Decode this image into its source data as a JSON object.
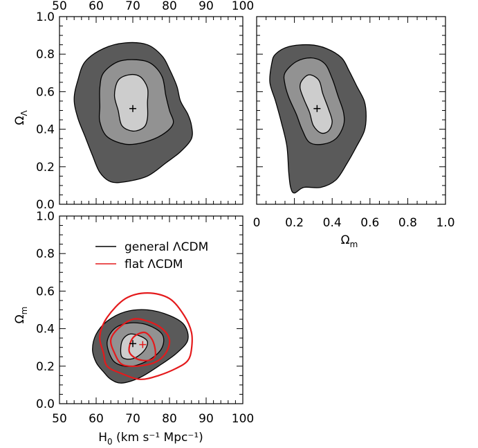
{
  "chart_data": [
    {
      "panel": "top-left",
      "type": "contour",
      "x_axis": {
        "label": "",
        "range": [
          50,
          100
        ],
        "ticks": [
          "50",
          "60",
          "70",
          "80",
          "90",
          "100"
        ],
        "tick_labels_position": "top"
      },
      "y_axis": {
        "label_main": "Ω",
        "label_sub": "Λ",
        "range": [
          0,
          1
        ],
        "ticks": [
          "0.0",
          "0.2",
          "0.4",
          "0.6",
          "0.8",
          "1.0"
        ]
      },
      "best_fit": {
        "H0": 70,
        "OmegaL": 0.51
      },
      "contours": [
        {
          "level": "outer",
          "fill": "#5a5a5a",
          "points": [
            [
              57,
              0.76
            ],
            [
              62,
              0.83
            ],
            [
              68,
              0.86
            ],
            [
              74,
              0.85
            ],
            [
              78,
              0.79
            ],
            [
              80,
              0.72
            ],
            [
              82,
              0.63
            ],
            [
              83,
              0.55
            ],
            [
              85,
              0.48
            ],
            [
              86,
              0.42
            ],
            [
              86,
              0.35
            ],
            [
              83,
              0.28
            ],
            [
              79,
              0.22
            ],
            [
              74,
              0.15
            ],
            [
              68,
              0.12
            ],
            [
              64,
              0.12
            ],
            [
              61,
              0.17
            ],
            [
              59,
              0.26
            ],
            [
              57,
              0.36
            ],
            [
              55,
              0.46
            ],
            [
              54,
              0.56
            ],
            [
              55,
              0.66
            ]
          ]
        },
        {
          "level": "middle",
          "fill": "#929292",
          "points": [
            [
              62,
              0.7
            ],
            [
              66,
              0.76
            ],
            [
              71,
              0.77
            ],
            [
              75,
              0.75
            ],
            [
              78,
              0.68
            ],
            [
              79,
              0.58
            ],
            [
              80,
              0.5
            ],
            [
              81,
              0.43
            ],
            [
              78,
              0.37
            ],
            [
              73,
              0.33
            ],
            [
              68,
              0.32
            ],
            [
              63,
              0.36
            ],
            [
              61,
              0.44
            ],
            [
              61,
              0.52
            ],
            [
              61,
              0.62
            ]
          ]
        },
        {
          "level": "inner",
          "fill": "#cdcdcd",
          "points": [
            [
              66,
              0.66
            ],
            [
              69,
              0.69
            ],
            [
              72,
              0.68
            ],
            [
              74,
              0.62
            ],
            [
              74,
              0.54
            ],
            [
              74,
              0.46
            ],
            [
              73,
              0.41
            ],
            [
              70,
              0.39
            ],
            [
              67,
              0.42
            ],
            [
              66,
              0.5
            ],
            [
              65,
              0.58
            ]
          ]
        }
      ]
    },
    {
      "panel": "top-right",
      "type": "contour",
      "x_axis": {
        "label_main": "Ω",
        "label_sub": "m",
        "range": [
          0,
          1
        ],
        "ticks": [
          "0",
          "0.2",
          "0.4",
          "0.6",
          "0.8",
          "1.0"
        ]
      },
      "y_axis": {
        "label": "",
        "range": [
          0,
          1
        ]
      },
      "best_fit": {
        "OmegaM": 0.32,
        "OmegaL": 0.51
      },
      "contours": [
        {
          "level": "outer",
          "fill": "#5a5a5a",
          "points": [
            [
              0.08,
              0.75
            ],
            [
              0.1,
              0.8
            ],
            [
              0.17,
              0.84
            ],
            [
              0.28,
              0.85
            ],
            [
              0.37,
              0.83
            ],
            [
              0.45,
              0.78
            ],
            [
              0.49,
              0.71
            ],
            [
              0.53,
              0.63
            ],
            [
              0.57,
              0.55
            ],
            [
              0.58,
              0.47
            ],
            [
              0.57,
              0.39
            ],
            [
              0.53,
              0.31
            ],
            [
              0.48,
              0.22
            ],
            [
              0.42,
              0.13
            ],
            [
              0.34,
              0.09
            ],
            [
              0.25,
              0.09
            ],
            [
              0.2,
              0.06
            ],
            [
              0.18,
              0.09
            ],
            [
              0.17,
              0.17
            ],
            [
              0.16,
              0.31
            ],
            [
              0.13,
              0.44
            ],
            [
              0.1,
              0.55
            ],
            [
              0.07,
              0.65
            ]
          ]
        },
        {
          "level": "middle",
          "fill": "#929292",
          "points": [
            [
              0.15,
              0.7
            ],
            [
              0.21,
              0.76
            ],
            [
              0.29,
              0.78
            ],
            [
              0.36,
              0.75
            ],
            [
              0.4,
              0.67
            ],
            [
              0.43,
              0.58
            ],
            [
              0.46,
              0.49
            ],
            [
              0.46,
              0.42
            ],
            [
              0.42,
              0.35
            ],
            [
              0.35,
              0.32
            ],
            [
              0.28,
              0.33
            ],
            [
              0.24,
              0.4
            ],
            [
              0.21,
              0.48
            ],
            [
              0.17,
              0.57
            ],
            [
              0.15,
              0.64
            ]
          ]
        },
        {
          "level": "inner",
          "fill": "#cdcdcd",
          "points": [
            [
              0.24,
              0.66
            ],
            [
              0.28,
              0.69
            ],
            [
              0.33,
              0.66
            ],
            [
              0.35,
              0.59
            ],
            [
              0.38,
              0.51
            ],
            [
              0.4,
              0.44
            ],
            [
              0.38,
              0.39
            ],
            [
              0.34,
              0.38
            ],
            [
              0.3,
              0.42
            ],
            [
              0.28,
              0.49
            ],
            [
              0.25,
              0.56
            ],
            [
              0.23,
              0.62
            ]
          ]
        }
      ]
    },
    {
      "panel": "bottom-left",
      "type": "contour",
      "x_axis": {
        "label_main": "H",
        "label_sub": "0",
        "label_rest": " (km s⁻¹ Mpc⁻¹)",
        "range": [
          50,
          100
        ],
        "ticks": [
          "50",
          "60",
          "70",
          "80",
          "90",
          "100"
        ]
      },
      "y_axis": {
        "label_main": "Ω",
        "label_sub": "m",
        "range": [
          0,
          1
        ],
        "ticks": [
          "0.0",
          "0.2",
          "0.4",
          "0.6",
          "0.8",
          "1.0"
        ]
      },
      "legend": [
        {
          "label": "general ΛCDM",
          "color": "#000000"
        },
        {
          "label": "flat ΛCDM",
          "color": "#e41a1c"
        }
      ],
      "best_fit_general": {
        "H0": 70,
        "OmegaM": 0.32
      },
      "best_fit_flat": {
        "H0": 72.7,
        "OmegaM": 0.315
      },
      "contours": [
        {
          "level": "outer",
          "fill": "#5a5a5a",
          "points": [
            [
              60,
              0.22
            ],
            [
              62,
              0.17
            ],
            [
              64,
              0.13
            ],
            [
              67,
              0.11
            ],
            [
              72,
              0.14
            ],
            [
              77,
              0.2
            ],
            [
              82,
              0.27
            ],
            [
              85,
              0.34
            ],
            [
              84,
              0.42
            ],
            [
              80,
              0.47
            ],
            [
              74,
              0.5
            ],
            [
              68,
              0.49
            ],
            [
              63,
              0.44
            ],
            [
              60,
              0.37
            ],
            [
              59,
              0.29
            ]
          ]
        },
        {
          "level": "middle",
          "fill": "#929292",
          "points": [
            [
              64,
              0.25
            ],
            [
              66,
              0.21
            ],
            [
              70,
              0.2
            ],
            [
              75,
              0.24
            ],
            [
              78,
              0.3
            ],
            [
              78,
              0.37
            ],
            [
              74,
              0.42
            ],
            [
              69,
              0.43
            ],
            [
              65,
              0.4
            ],
            [
              63,
              0.33
            ]
          ]
        },
        {
          "level": "inner",
          "fill": "#cdcdcd",
          "points": [
            [
              67,
              0.25
            ],
            [
              70,
              0.24
            ],
            [
              73,
              0.28
            ],
            [
              74,
              0.33
            ],
            [
              72,
              0.36
            ],
            [
              69,
              0.37
            ],
            [
              67,
              0.33
            ]
          ]
        }
      ],
      "flat_contours": [
        {
          "level": "outer",
          "points": [
            [
              62,
              0.27
            ],
            [
              63,
              0.2
            ],
            [
              67,
              0.16
            ],
            [
              72,
              0.13
            ],
            [
              77,
              0.15
            ],
            [
              82,
              0.19
            ],
            [
              85,
              0.23
            ],
            [
              86,
              0.29
            ],
            [
              86,
              0.38
            ],
            [
              84,
              0.47
            ],
            [
              80,
              0.56
            ],
            [
              74,
              0.59
            ],
            [
              68,
              0.56
            ],
            [
              63,
              0.46
            ],
            [
              61,
              0.36
            ]
          ]
        },
        {
          "level": "middle",
          "points": [
            [
              65,
              0.27
            ],
            [
              67,
              0.21
            ],
            [
              71,
              0.2
            ],
            [
              76,
              0.22
            ],
            [
              79,
              0.27
            ],
            [
              80,
              0.34
            ],
            [
              78,
              0.4
            ],
            [
              74,
              0.44
            ],
            [
              70,
              0.45
            ],
            [
              66,
              0.4
            ],
            [
              64,
              0.34
            ]
          ]
        },
        {
          "level": "inner",
          "points": [
            [
              69,
              0.28
            ],
            [
              71,
              0.24
            ],
            [
              74,
              0.23
            ],
            [
              76,
              0.25
            ],
            [
              76,
              0.3
            ],
            [
              75,
              0.35
            ],
            [
              73,
              0.38
            ],
            [
              70,
              0.35
            ]
          ]
        }
      ]
    }
  ]
}
